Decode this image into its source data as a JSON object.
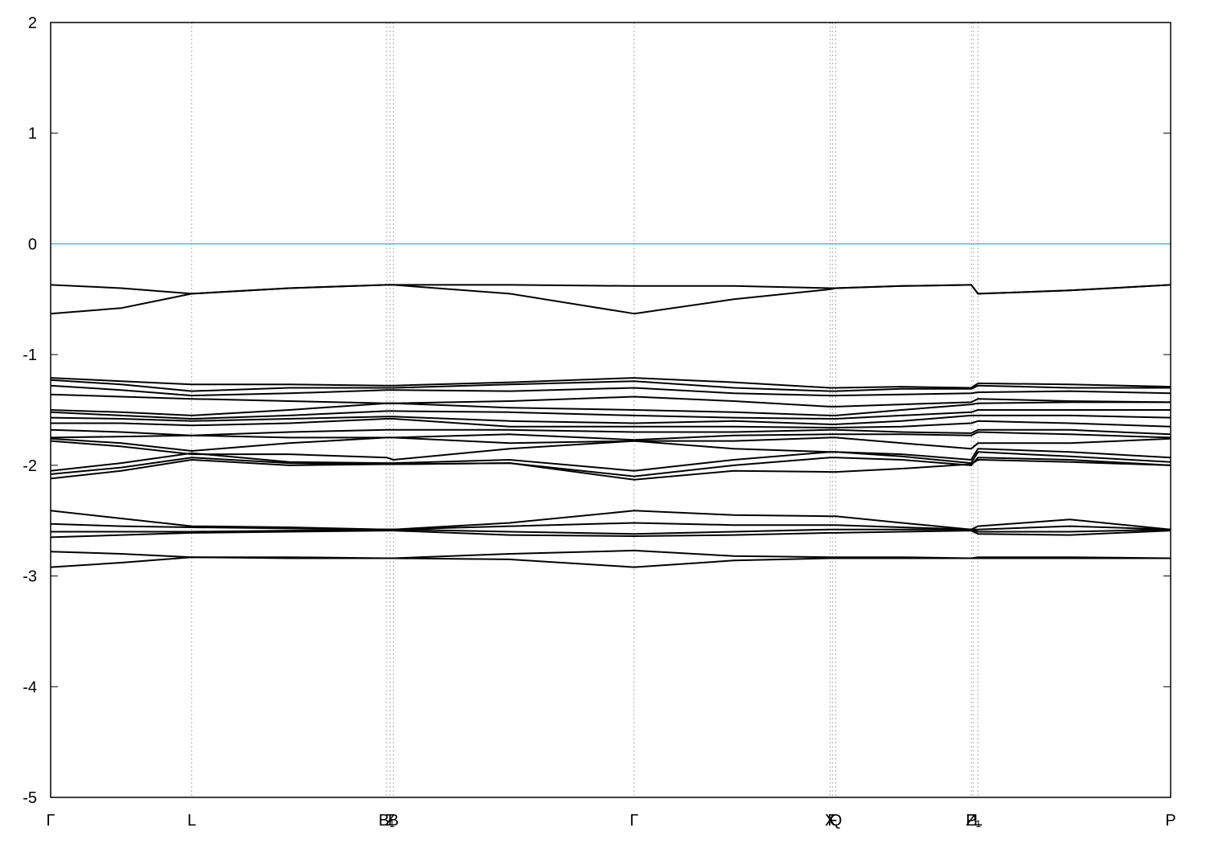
{
  "chart_data": {
    "type": "line",
    "x": [
      0,
      0.063,
      0.126,
      0.213,
      0.3,
      0.306,
      0.41,
      0.521,
      0.61,
      0.696,
      0.701,
      0.76,
      0.822,
      0.828,
      0.91,
      1.0
    ],
    "xlim": [
      0,
      1.0
    ],
    "xticks": [
      {
        "value": 0,
        "label": "Γ"
      },
      {
        "value": 0.126,
        "label": "L"
      },
      {
        "value": 0.3,
        "label": "B₁"
      },
      {
        "value": 0.303,
        "label": "Z"
      },
      {
        "value": 0.306,
        "label": "B"
      },
      {
        "value": 0.521,
        "label": "Γ"
      },
      {
        "value": 0.696,
        "label": "X"
      },
      {
        "value": 0.698,
        "label": "F"
      },
      {
        "value": 0.701,
        "label": "Q"
      },
      {
        "value": 0.822,
        "label": "P"
      },
      {
        "value": 0.824,
        "label": "Z₁"
      },
      {
        "value": 0.828,
        "label": "L"
      },
      {
        "value": 1.0,
        "label": "P"
      }
    ],
    "ylim": [
      -5,
      2
    ],
    "yticks": [
      -5,
      -4,
      -3,
      -2,
      -1,
      0,
      1,
      2
    ],
    "xgrid": true,
    "reference_line": {
      "value": 0,
      "color": "#5ab4c8"
    },
    "series": [
      {
        "color": "#000000",
        "values": [
          -0.37,
          -0.4,
          -0.45,
          -0.4,
          -0.37,
          -0.37,
          -0.37,
          -0.38,
          -0.38,
          -0.4,
          -0.4,
          -0.38,
          -0.37,
          -0.45,
          -0.42,
          -0.37
        ]
      },
      {
        "color": "#000000",
        "values": [
          -0.63,
          -0.58,
          -0.45,
          -0.4,
          -0.37,
          -0.37,
          -0.45,
          -0.63,
          -0.5,
          -0.41,
          -0.4,
          -0.38,
          -0.37,
          -0.45,
          -0.42,
          -0.37
        ]
      },
      {
        "color": "#000000",
        "values": [
          -1.21,
          -1.24,
          -1.27,
          -1.27,
          -1.28,
          -1.28,
          -1.25,
          -1.21,
          -1.25,
          -1.3,
          -1.3,
          -1.29,
          -1.3,
          -1.26,
          -1.27,
          -1.29
        ]
      },
      {
        "color": "#000000",
        "values": [
          -1.23,
          -1.27,
          -1.33,
          -1.3,
          -1.3,
          -1.3,
          -1.27,
          -1.24,
          -1.3,
          -1.33,
          -1.33,
          -1.31,
          -1.31,
          -1.28,
          -1.3,
          -1.3
        ]
      },
      {
        "color": "#000000",
        "values": [
          -1.28,
          -1.32,
          -1.37,
          -1.35,
          -1.32,
          -1.32,
          -1.33,
          -1.3,
          -1.35,
          -1.37,
          -1.37,
          -1.36,
          -1.35,
          -1.34,
          -1.33,
          -1.35
        ]
      },
      {
        "color": "#000000",
        "values": [
          -1.36,
          -1.38,
          -1.4,
          -1.42,
          -1.44,
          -1.44,
          -1.42,
          -1.38,
          -1.42,
          -1.47,
          -1.47,
          -1.45,
          -1.43,
          -1.4,
          -1.42,
          -1.43
        ]
      },
      {
        "color": "#000000",
        "values": [
          -1.5,
          -1.52,
          -1.55,
          -1.5,
          -1.44,
          -1.44,
          -1.48,
          -1.5,
          -1.52,
          -1.55,
          -1.55,
          -1.5,
          -1.45,
          -1.44,
          -1.43,
          -1.43
        ]
      },
      {
        "color": "#000000",
        "values": [
          -1.52,
          -1.55,
          -1.58,
          -1.55,
          -1.51,
          -1.51,
          -1.52,
          -1.55,
          -1.57,
          -1.58,
          -1.58,
          -1.55,
          -1.52,
          -1.5,
          -1.5,
          -1.5
        ]
      },
      {
        "color": "#000000",
        "values": [
          -1.57,
          -1.58,
          -1.6,
          -1.58,
          -1.56,
          -1.56,
          -1.6,
          -1.62,
          -1.6,
          -1.63,
          -1.63,
          -1.6,
          -1.55,
          -1.55,
          -1.55,
          -1.57
        ]
      },
      {
        "color": "#000000",
        "values": [
          -1.62,
          -1.62,
          -1.64,
          -1.62,
          -1.58,
          -1.58,
          -1.65,
          -1.65,
          -1.65,
          -1.66,
          -1.66,
          -1.65,
          -1.62,
          -1.6,
          -1.62,
          -1.65
        ]
      },
      {
        "color": "#000000",
        "values": [
          -1.68,
          -1.7,
          -1.73,
          -1.7,
          -1.68,
          -1.68,
          -1.68,
          -1.7,
          -1.7,
          -1.68,
          -1.68,
          -1.7,
          -1.71,
          -1.68,
          -1.68,
          -1.72
        ]
      },
      {
        "color": "#000000",
        "values": [
          -1.75,
          -1.74,
          -1.73,
          -1.75,
          -1.75,
          -1.75,
          -1.72,
          -1.77,
          -1.73,
          -1.72,
          -1.72,
          -1.72,
          -1.73,
          -1.7,
          -1.72,
          -1.75
        ]
      },
      {
        "color": "#000000",
        "values": [
          -1.76,
          -1.8,
          -1.87,
          -1.8,
          -1.75,
          -1.75,
          -1.8,
          -1.78,
          -1.78,
          -1.75,
          -1.75,
          -1.8,
          -1.85,
          -1.8,
          -1.8,
          -1.76
        ]
      },
      {
        "color": "#000000",
        "values": [
          -1.78,
          -1.83,
          -1.9,
          -1.9,
          -1.93,
          -1.95,
          -1.85,
          -1.78,
          -1.85,
          -1.88,
          -1.88,
          -1.9,
          -1.95,
          -1.85,
          -1.88,
          -1.93
        ]
      },
      {
        "color": "#000000",
        "values": [
          -2.05,
          -1.98,
          -1.89,
          -1.97,
          -1.98,
          -1.98,
          -1.95,
          -2.05,
          -1.95,
          -1.88,
          -1.88,
          -1.92,
          -1.98,
          -1.88,
          -1.92,
          -1.97
        ]
      },
      {
        "color": "#000000",
        "values": [
          -2.08,
          -2.02,
          -1.93,
          -1.98,
          -1.99,
          -1.99,
          -1.98,
          -2.1,
          -2.0,
          -1.93,
          -1.93,
          -1.95,
          -2.0,
          -1.93,
          -1.95,
          -2.0
        ]
      },
      {
        "color": "#000000",
        "values": [
          -2.12,
          -2.05,
          -1.95,
          -2.0,
          -1.99,
          -1.99,
          -1.98,
          -2.13,
          -2.05,
          -2.06,
          -2.06,
          -2.03,
          -1.99,
          -1.95,
          -1.97,
          -2.0
        ]
      },
      {
        "color": "#000000",
        "values": [
          -2.41,
          -2.48,
          -2.55,
          -2.56,
          -2.58,
          -2.58,
          -2.52,
          -2.41,
          -2.45,
          -2.46,
          -2.46,
          -2.52,
          -2.58,
          -2.55,
          -2.49,
          -2.58
        ]
      },
      {
        "color": "#000000",
        "values": [
          -2.53,
          -2.55,
          -2.56,
          -2.57,
          -2.58,
          -2.58,
          -2.55,
          -2.52,
          -2.54,
          -2.54,
          -2.54,
          -2.56,
          -2.58,
          -2.58,
          -2.55,
          -2.58
        ]
      },
      {
        "color": "#000000",
        "values": [
          -2.6,
          -2.6,
          -2.6,
          -2.59,
          -2.58,
          -2.58,
          -2.6,
          -2.62,
          -2.6,
          -2.58,
          -2.58,
          -2.58,
          -2.58,
          -2.6,
          -2.6,
          -2.58
        ]
      },
      {
        "color": "#000000",
        "values": [
          -2.65,
          -2.63,
          -2.61,
          -2.6,
          -2.59,
          -2.59,
          -2.63,
          -2.64,
          -2.63,
          -2.61,
          -2.61,
          -2.6,
          -2.59,
          -2.62,
          -2.63,
          -2.59
        ]
      },
      {
        "color": "#000000",
        "values": [
          -2.78,
          -2.8,
          -2.83,
          -2.83,
          -2.84,
          -2.84,
          -2.8,
          -2.77,
          -2.82,
          -2.83,
          -2.83,
          -2.83,
          -2.84,
          -2.83,
          -2.83,
          -2.84
        ]
      },
      {
        "color": "#000000",
        "values": [
          -2.92,
          -2.88,
          -2.83,
          -2.84,
          -2.84,
          -2.84,
          -2.85,
          -2.92,
          -2.86,
          -2.84,
          -2.84,
          -2.84,
          -2.84,
          -2.84,
          -2.84,
          -2.84
        ]
      }
    ]
  }
}
